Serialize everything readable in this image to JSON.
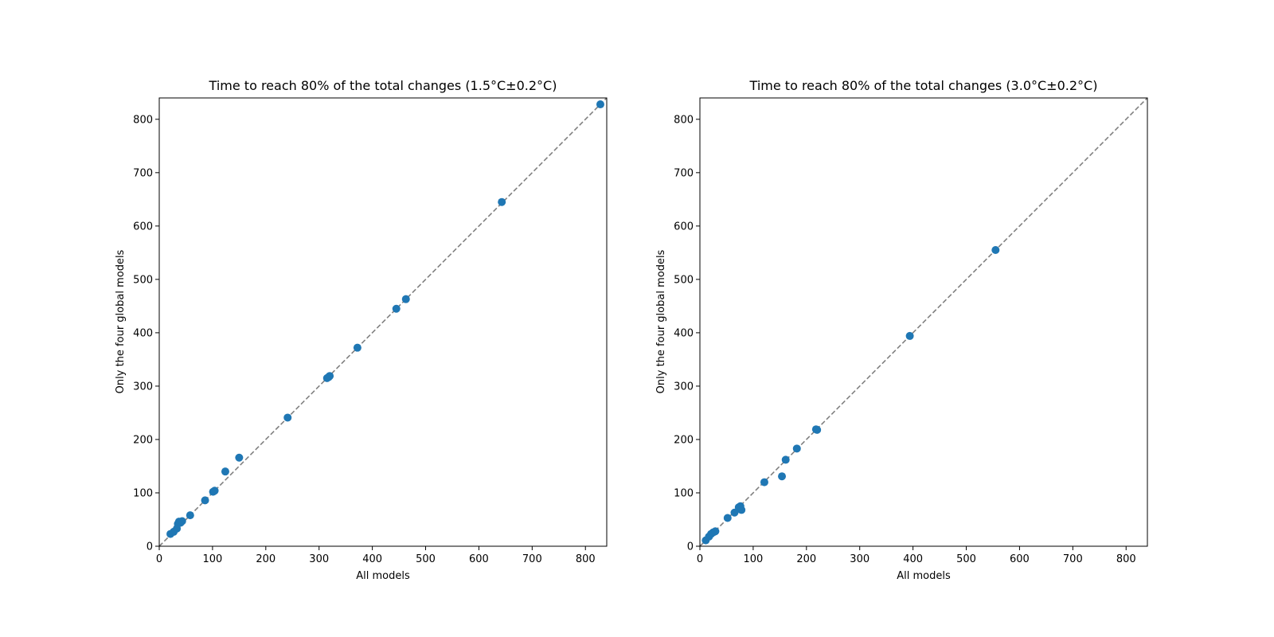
{
  "chart_data": [
    {
      "type": "scatter",
      "title": "Time to reach 80% of the total changes (1.5°C±0.2°C)",
      "xlabel": "All models",
      "ylabel": "Only the four global models",
      "xlim": [
        0,
        840
      ],
      "ylim": [
        0,
        840
      ],
      "xticks": [
        0,
        100,
        200,
        300,
        400,
        500,
        600,
        700,
        800
      ],
      "yticks": [
        0,
        100,
        200,
        300,
        400,
        500,
        600,
        700,
        800
      ],
      "grid": false,
      "reference_line": "y = x (dashed grey)",
      "marker_color": "#1f77b4",
      "points": [
        {
          "x": 21,
          "y": 23
        },
        {
          "x": 27,
          "y": 27
        },
        {
          "x": 33,
          "y": 33
        },
        {
          "x": 35,
          "y": 42
        },
        {
          "x": 37,
          "y": 46
        },
        {
          "x": 40,
          "y": 44
        },
        {
          "x": 43,
          "y": 47
        },
        {
          "x": 58,
          "y": 58
        },
        {
          "x": 86,
          "y": 86
        },
        {
          "x": 101,
          "y": 102
        },
        {
          "x": 104,
          "y": 104
        },
        {
          "x": 124,
          "y": 140
        },
        {
          "x": 150,
          "y": 166
        },
        {
          "x": 241,
          "y": 241
        },
        {
          "x": 315,
          "y": 315
        },
        {
          "x": 318,
          "y": 317
        },
        {
          "x": 320,
          "y": 319
        },
        {
          "x": 372,
          "y": 372
        },
        {
          "x": 445,
          "y": 445
        },
        {
          "x": 463,
          "y": 463
        },
        {
          "x": 643,
          "y": 645
        },
        {
          "x": 828,
          "y": 828
        }
      ]
    },
    {
      "type": "scatter",
      "title": "Time to reach 80% of the total changes (3.0°C±0.2°C)",
      "xlabel": "All models",
      "ylabel": "Only the four global models",
      "xlim": [
        0,
        840
      ],
      "ylim": [
        0,
        840
      ],
      "xticks": [
        0,
        100,
        200,
        300,
        400,
        500,
        600,
        700,
        800
      ],
      "yticks": [
        0,
        100,
        200,
        300,
        400,
        500,
        600,
        700,
        800
      ],
      "grid": false,
      "reference_line": "y = x (dashed grey)",
      "marker_color": "#1f77b4",
      "points": [
        {
          "x": 11,
          "y": 11
        },
        {
          "x": 17,
          "y": 18
        },
        {
          "x": 21,
          "y": 23
        },
        {
          "x": 25,
          "y": 26
        },
        {
          "x": 29,
          "y": 28
        },
        {
          "x": 52,
          "y": 53
        },
        {
          "x": 65,
          "y": 63
        },
        {
          "x": 73,
          "y": 73
        },
        {
          "x": 76,
          "y": 75
        },
        {
          "x": 78,
          "y": 68
        },
        {
          "x": 121,
          "y": 120
        },
        {
          "x": 154,
          "y": 131
        },
        {
          "x": 161,
          "y": 162
        },
        {
          "x": 182,
          "y": 183
        },
        {
          "x": 218,
          "y": 219
        },
        {
          "x": 220,
          "y": 218
        },
        {
          "x": 394,
          "y": 394
        },
        {
          "x": 555,
          "y": 555
        }
      ]
    }
  ]
}
